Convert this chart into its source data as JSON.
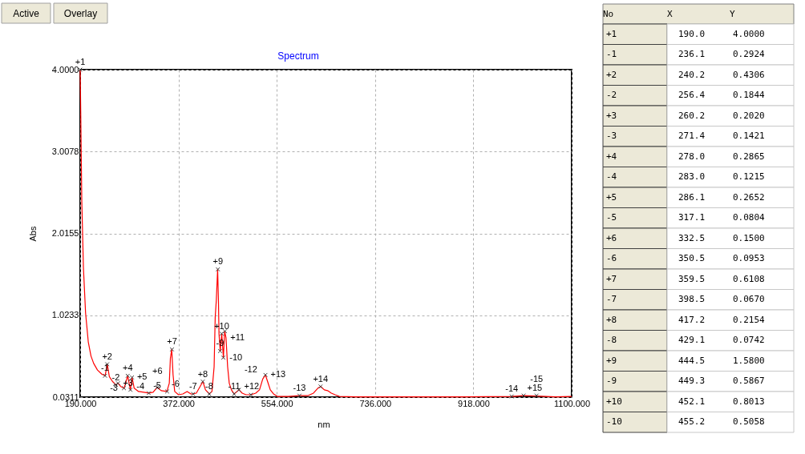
{
  "chart_data": {
    "type": "line",
    "title": "Spectrum",
    "xlabel": "nm",
    "ylabel": "Abs",
    "xlim": [
      190,
      1100
    ],
    "ylim": [
      0.0311,
      4.0
    ],
    "xticks": [
      {
        "value": 190,
        "label": "190.000"
      },
      {
        "value": 372,
        "label": "372.000"
      },
      {
        "value": 554,
        "label": "554.000"
      },
      {
        "value": 736,
        "label": "736.000"
      },
      {
        "value": 918,
        "label": "918.000"
      },
      {
        "value": 1100,
        "label": "1100.000"
      }
    ],
    "yticks": [
      {
        "value": 0.0311,
        "label": "0.0311"
      },
      {
        "value": 1.0233,
        "label": "1.0233"
      },
      {
        "value": 2.0155,
        "label": "2.0155"
      },
      {
        "value": 3.0078,
        "label": "3.0078"
      },
      {
        "value": 4.0,
        "label": "4.0000"
      }
    ],
    "grid": true,
    "annotations": [
      "Active",
      "Overlay",
      "No",
      "X",
      "Y",
      "+1",
      "190.0",
      "4.0000",
      "-1",
      "236.1",
      "0.2924",
      "+2",
      "240.2",
      "0.4306",
      "-2",
      "256.4",
      "0.1844",
      "+3",
      "260.2",
      "0.2020",
      "-3",
      "271.4",
      "0.1421",
      "+4",
      "278.0",
      "0.2865",
      "-4",
      "283.0",
      "0.1215",
      "+5",
      "286.1",
      "0.2652",
      "-5",
      "317.1",
      "0.0804",
      "+6",
      "332.5",
      "0.1500",
      "-6",
      "350.5",
      "0.0953",
      "+7",
      "359.5",
      "0.6108",
      "-7",
      "398.5",
      "0.0670",
      "+8",
      "417.2",
      "0.2154",
      "-8",
      "429.1",
      "0.0742",
      "+9",
      "444.5",
      "1.5800",
      "-9",
      "449.3",
      "0.5867",
      "+10",
      "452.1",
      "0.8013",
      "-10",
      "455.2",
      "0.5058",
      {
        "text": "+1",
        "x": 190,
        "y": 4.0
      },
      {
        "text": "-1",
        "x": 236,
        "y": 0.29
      },
      {
        "text": "+2",
        "x": 240,
        "y": 0.43
      },
      {
        "text": "-2",
        "x": 256,
        "y": 0.18
      },
      {
        "text": "+3",
        "x": 260,
        "y": 0.2
      },
      {
        "text": "-3",
        "x": 271,
        "y": 0.14
      },
      {
        "text": "+4",
        "x": 278,
        "y": 0.29
      },
      {
        "text": "-4",
        "x": 283,
        "y": 0.12
      },
      {
        "text": "+5",
        "x": 286,
        "y": 0.27
      },
      {
        "text": "-5",
        "x": 317,
        "y": 0.08
      },
      {
        "text": "+6",
        "x": 333,
        "y": 0.15
      },
      {
        "text": "-6",
        "x": 351,
        "y": 0.1
      },
      {
        "text": "+7",
        "x": 360,
        "y": 0.61
      },
      {
        "text": "-7",
        "x": 399,
        "y": 0.07
      },
      {
        "text": "+8",
        "x": 417,
        "y": 0.22
      },
      {
        "text": "-8",
        "x": 429,
        "y": 0.07
      },
      {
        "text": "+9",
        "x": 445,
        "y": 1.58
      },
      {
        "text": "-9",
        "x": 449,
        "y": 0.59
      },
      {
        "text": "+10",
        "x": 452,
        "y": 0.8
      },
      {
        "text": "-10",
        "x": 455,
        "y": 0.51
      },
      {
        "text": "+11",
        "x": 458,
        "y": 0.83
      },
      {
        "text": "-11",
        "x": 475,
        "y": 0.07
      },
      {
        "text": "+12",
        "x": 484,
        "y": 0.12
      },
      {
        "text": "-12",
        "x": 506,
        "y": 0.06
      },
      {
        "text": "+13",
        "x": 533,
        "y": 0.3
      },
      {
        "text": "-13",
        "x": 596,
        "y": 0.05
      },
      {
        "text": "+14",
        "x": 635,
        "y": 0.16
      },
      {
        "text": "-14",
        "x": 989,
        "y": 0.04
      },
      {
        "text": "+15",
        "x": 1011,
        "y": 0.05
      },
      {
        "text": "-15",
        "x": 1035,
        "y": 0.05
      }
    ],
    "series": [
      {
        "color": "#ff0000",
        "line_style": "solid",
        "x": [
          190,
          191,
          193,
          196,
          200,
          205,
          210,
          215,
          222,
          230,
          236.1,
          240.2,
          244,
          250,
          256.4,
          260.2,
          265,
          271.4,
          278.0,
          283.0,
          286.1,
          290,
          298,
          308,
          317.1,
          325,
          332.5,
          340,
          350.5,
          355,
          357,
          359.5,
          362,
          365,
          372,
          380,
          388,
          395,
          398.5,
          405,
          412,
          417.2,
          422,
          429.1,
          434,
          438,
          440,
          442,
          444.5,
          446,
          447,
          449.3,
          452.1,
          455.2,
          457.5,
          460,
          463,
          466,
          470,
          475,
          484,
          490,
          497,
          506,
          515,
          522,
          528,
          533,
          537,
          542,
          548,
          555,
          575,
          595.6,
          612,
          622,
          630,
          635.4,
          642,
          648,
          655,
          662,
          670,
          700,
          800,
          900,
          989,
          1011,
          1035,
          1070,
          1100
        ],
        "values": [
          4.0,
          3.5,
          2.4,
          1.6,
          1.05,
          0.7,
          0.53,
          0.44,
          0.36,
          0.31,
          0.29,
          0.43,
          0.28,
          0.22,
          0.18,
          0.2,
          0.16,
          0.14,
          0.29,
          0.12,
          0.27,
          0.14,
          0.1,
          0.09,
          0.08,
          0.09,
          0.15,
          0.11,
          0.1,
          0.2,
          0.5,
          0.61,
          0.3,
          0.1,
          0.06,
          0.07,
          0.1,
          0.07,
          0.07,
          0.08,
          0.16,
          0.22,
          0.12,
          0.07,
          0.1,
          0.4,
          1.0,
          1.2,
          1.58,
          1.2,
          0.8,
          0.59,
          0.8,
          0.51,
          0.83,
          0.75,
          0.4,
          0.2,
          0.12,
          0.07,
          0.12,
          0.08,
          0.06,
          0.06,
          0.08,
          0.12,
          0.25,
          0.3,
          0.22,
          0.12,
          0.07,
          0.04,
          0.04,
          0.05,
          0.05,
          0.08,
          0.14,
          0.16,
          0.12,
          0.11,
          0.08,
          0.06,
          0.04,
          0.035,
          0.035,
          0.035,
          0.04,
          0.05,
          0.045,
          0.035,
          0.04
        ]
      },
      {
        "type": "scatter",
        "color": "#404040",
        "marker": "cross",
        "x": [
          190,
          236,
          240,
          256,
          260,
          271,
          278,
          283,
          286,
          317,
          333,
          351,
          360,
          399,
          417,
          429,
          445,
          449,
          452,
          455,
          458,
          475,
          484,
          506,
          533,
          596,
          635,
          989,
          1011,
          1035
        ],
        "values": [
          4.0,
          0.29,
          0.43,
          0.18,
          0.2,
          0.14,
          0.29,
          0.12,
          0.27,
          0.08,
          0.15,
          0.1,
          0.61,
          0.07,
          0.22,
          0.07,
          1.58,
          0.59,
          0.8,
          0.51,
          0.83,
          0.07,
          0.12,
          0.06,
          0.3,
          0.05,
          0.16,
          0.04,
          0.05,
          0.05
        ]
      }
    ]
  }
}
